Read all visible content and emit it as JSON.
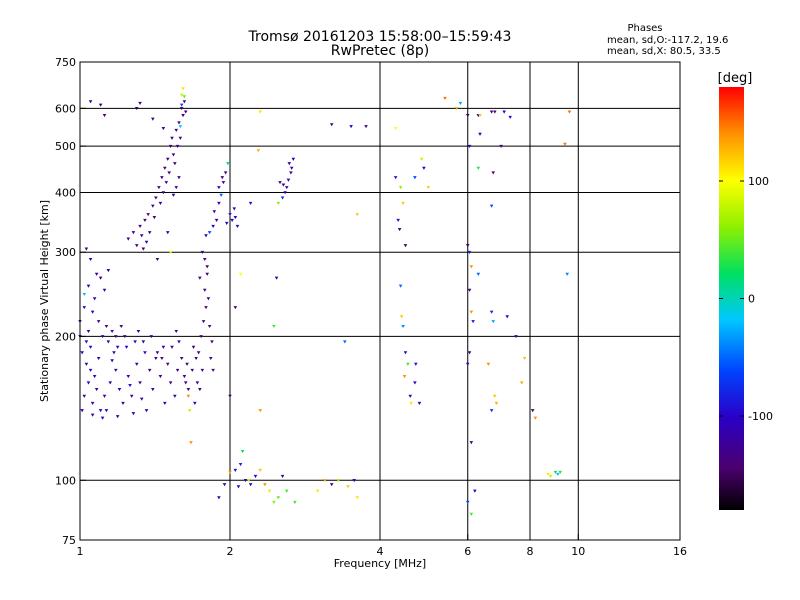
{
  "chart_data": {
    "type": "scatter",
    "title": "Tromsø 20161203 15:58:00–15:59:43",
    "subtitle": "RwPretec (8p)",
    "xlabel": "Frequency [MHz]",
    "ylabel": "Stationary phase Virtual Height [km]",
    "x_scale": "log",
    "y_scale": "log",
    "xlim": [
      1,
      16
    ],
    "ylim": [
      75,
      750
    ],
    "x_ticks": [
      {
        "value": 1,
        "label": "1"
      },
      {
        "value": 2,
        "label": "2"
      },
      {
        "value": 4,
        "label": "4"
      },
      {
        "value": 6,
        "label": "6"
      },
      {
        "value": 8,
        "label": "8"
      },
      {
        "value": 10,
        "label": "10"
      },
      {
        "value": 16,
        "label": "16"
      }
    ],
    "x_grid": [
      2,
      4,
      6,
      8,
      10
    ],
    "y_ticks": [
      {
        "value": 75,
        "label": "75"
      },
      {
        "value": 100,
        "label": "100"
      },
      {
        "value": 200,
        "label": "200"
      },
      {
        "value": 300,
        "label": "300"
      },
      {
        "value": 400,
        "label": "400"
      },
      {
        "value": 500,
        "label": "500"
      },
      {
        "value": 600,
        "label": "600"
      },
      {
        "value": 750,
        "label": "750"
      }
    ],
    "y_grid": [
      100,
      200,
      300,
      400,
      500,
      600
    ],
    "legend": {
      "title": "Phases",
      "lines": [
        "mean, sd,O:-117.2, 19.6",
        "mean, sd,X:  80.5, 33.5"
      ]
    },
    "colorbar": {
      "label": "[deg]",
      "range": [
        -180,
        180
      ],
      "ticks": [
        {
          "value": 100,
          "label": "100"
        },
        {
          "value": 0,
          "label": "0"
        },
        {
          "value": -100,
          "label": "-100"
        }
      ]
    },
    "point_columns": [
      "frequency_mhz",
      "height_km",
      "phase_deg"
    ],
    "points": [
      [
        1.02,
        150,
        -118
      ],
      [
        1.04,
        160,
        -112
      ],
      [
        1.06,
        145,
        -125
      ],
      [
        1.05,
        170,
        -105
      ],
      [
        1.08,
        155,
        -130
      ],
      [
        1.1,
        140,
        -100
      ],
      [
        1.03,
        175,
        -120
      ],
      [
        1.07,
        165,
        -95
      ],
      [
        1.12,
        150,
        -135
      ],
      [
        1.09,
        180,
        -110
      ],
      [
        1.15,
        160,
        -122
      ],
      [
        1.13,
        140,
        -108
      ],
      [
        1.18,
        170,
        -128
      ],
      [
        1.2,
        155,
        -100
      ],
      [
        1.17,
        185,
        -115
      ],
      [
        1.22,
        145,
        -132
      ],
      [
        1.25,
        165,
        -118
      ],
      [
        1.24,
        190,
        -98
      ],
      [
        1.27,
        150,
        -140
      ],
      [
        1.3,
        175,
        -110
      ],
      [
        1.32,
        160,
        -126
      ],
      [
        1.35,
        185,
        -104
      ],
      [
        1.33,
        148,
        -120
      ],
      [
        1.38,
        170,
        -136
      ],
      [
        1.4,
        155,
        -112
      ],
      [
        1.42,
        180,
        -124
      ],
      [
        1.45,
        165,
        -138
      ],
      [
        1.47,
        190,
        -116
      ],
      [
        1.5,
        175,
        -130
      ],
      [
        1.52,
        160,
        -142
      ],
      [
        1.55,
        150,
        -125
      ],
      [
        1.57,
        170,
        -135
      ],
      [
        1.6,
        180,
        -140
      ],
      [
        1.62,
        165,
        -128
      ],
      [
        1.65,
        155,
        -145
      ],
      [
        1.58,
        195,
        -120
      ],
      [
        1.48,
        145,
        -110
      ],
      [
        1.36,
        140,
        -118
      ],
      [
        1.28,
        138,
        -122
      ],
      [
        1.19,
        136,
        -115
      ],
      [
        1.11,
        135,
        -108
      ],
      [
        1.06,
        137,
        -126
      ],
      [
        1.01,
        140,
        -112
      ],
      [
        1.05,
        190,
        -102
      ],
      [
        1.14,
        195,
        -118
      ],
      [
        1.23,
        200,
        -125
      ],
      [
        1.31,
        205,
        -110
      ],
      [
        1.29,
        195,
        -98
      ],
      [
        1.16,
        178,
        -105
      ],
      [
        1.26,
        158,
        -92
      ],
      [
        1.0,
        215,
        -130
      ],
      [
        1.02,
        230,
        -115
      ],
      [
        1.06,
        225,
        -100
      ],
      [
        1.04,
        255,
        -110
      ],
      [
        1.07,
        240,
        -125
      ],
      [
        1.08,
        270,
        -120
      ],
      [
        1.05,
        290,
        -108
      ],
      [
        1.03,
        305,
        -135
      ],
      [
        1.02,
        245,
        -20
      ],
      [
        1.12,
        250,
        -116
      ],
      [
        1.1,
        265,
        -128
      ],
      [
        1.14,
        275,
        -104
      ],
      [
        1.25,
        320,
        -135
      ],
      [
        1.28,
        330,
        -128
      ],
      [
        1.3,
        310,
        -140
      ],
      [
        1.32,
        340,
        -132
      ],
      [
        1.35,
        350,
        -138
      ],
      [
        1.33,
        325,
        -125
      ],
      [
        1.37,
        360,
        -142
      ],
      [
        1.38,
        330,
        -130
      ],
      [
        1.4,
        375,
        -136
      ],
      [
        1.42,
        390,
        -128
      ],
      [
        1.41,
        355,
        -140
      ],
      [
        1.44,
        410,
        -134
      ],
      [
        1.45,
        380,
        -126
      ],
      [
        1.46,
        430,
        -138
      ],
      [
        1.47,
        400,
        -130
      ],
      [
        1.48,
        450,
        -142
      ],
      [
        1.49,
        420,
        -124
      ],
      [
        1.5,
        470,
        -136
      ],
      [
        1.51,
        440,
        -128
      ],
      [
        1.52,
        500,
        -140
      ],
      [
        1.54,
        480,
        -132
      ],
      [
        1.53,
        520,
        -126
      ],
      [
        1.55,
        460,
        -138
      ],
      [
        1.56,
        540,
        -134
      ],
      [
        1.57,
        500,
        -128
      ],
      [
        1.58,
        560,
        -142
      ],
      [
        1.59,
        520,
        -130
      ],
      [
        1.6,
        600,
        -136
      ],
      [
        1.61,
        580,
        -128
      ],
      [
        1.62,
        620,
        -132
      ],
      [
        1.6,
        640,
        80
      ],
      [
        1.61,
        660,
        110
      ],
      [
        1.62,
        635,
        50
      ],
      [
        1.6,
        610,
        -60
      ],
      [
        1.63,
        590,
        -140
      ],
      [
        1.59,
        550,
        -20
      ],
      [
        1.58,
        430,
        -126
      ],
      [
        1.56,
        410,
        -132
      ],
      [
        1.54,
        395,
        -120
      ],
      [
        1.3,
        600,
        -150
      ],
      [
        1.32,
        615,
        -140
      ],
      [
        1.4,
        570,
        -130
      ],
      [
        1.47,
        545,
        -125
      ],
      [
        1.5,
        330,
        -130
      ],
      [
        1.52,
        300,
        100
      ],
      [
        1.36,
        315,
        -110
      ],
      [
        1.34,
        305,
        -150
      ],
      [
        1.43,
        290,
        -130
      ],
      [
        1.65,
        150,
        140
      ],
      [
        1.66,
        140,
        80
      ],
      [
        1.67,
        120,
        140
      ],
      [
        1.7,
        145,
        -120
      ],
      [
        1.72,
        160,
        -130
      ],
      [
        1.74,
        155,
        -140
      ],
      [
        1.76,
        170,
        -125
      ],
      [
        1.73,
        185,
        -135
      ],
      [
        1.75,
        200,
        -140
      ],
      [
        1.77,
        215,
        -130
      ],
      [
        1.79,
        230,
        -138
      ],
      [
        1.78,
        250,
        -128
      ],
      [
        1.8,
        270,
        -134
      ],
      [
        1.81,
        240,
        -122
      ],
      [
        1.82,
        210,
        -130
      ],
      [
        1.84,
        195,
        -140
      ],
      [
        1.83,
        180,
        -128
      ],
      [
        1.85,
        170,
        -135
      ],
      [
        1.78,
        290,
        -132
      ],
      [
        1.76,
        300,
        -126
      ],
      [
        1.8,
        280,
        -142
      ],
      [
        1.74,
        265,
        -130
      ],
      [
        1.79,
        325,
        -120
      ],
      [
        1.82,
        330,
        -60
      ],
      [
        1.85,
        340,
        -110
      ],
      [
        1.88,
        350,
        -120
      ],
      [
        1.86,
        365,
        -130
      ],
      [
        1.9,
        380,
        -100
      ],
      [
        1.92,
        395,
        -50
      ],
      [
        1.9,
        410,
        -115
      ],
      [
        1.94,
        420,
        -105
      ],
      [
        1.96,
        440,
        -125
      ],
      [
        1.98,
        460,
        10
      ],
      [
        1.93,
        430,
        -140
      ],
      [
        1.97,
        345,
        -115
      ],
      [
        2.0,
        360,
        -90
      ],
      [
        2.02,
        350,
        -110
      ],
      [
        2.05,
        355,
        -100
      ],
      [
        2.07,
        340,
        -120
      ],
      [
        2.04,
        370,
        -105
      ],
      [
        2.3,
        590,
        110
      ],
      [
        2.28,
        490,
        130
      ],
      [
        2.2,
        380,
        -90
      ],
      [
        2.5,
        380,
        60
      ],
      [
        2.55,
        390,
        -80
      ],
      [
        2.58,
        400,
        -100
      ],
      [
        2.6,
        410,
        -120
      ],
      [
        2.62,
        425,
        -110
      ],
      [
        2.65,
        440,
        -130
      ],
      [
        2.63,
        460,
        -115
      ],
      [
        2.68,
        470,
        -125
      ],
      [
        2.66,
        450,
        -100
      ],
      [
        2.56,
        415,
        -135
      ],
      [
        2.52,
        420,
        -130
      ],
      [
        2.48,
        265,
        -130
      ],
      [
        2.45,
        210,
        40
      ],
      [
        2.3,
        140,
        140
      ],
      [
        2.1,
        270,
        100
      ],
      [
        2.05,
        230,
        -150
      ],
      [
        2.0,
        150,
        -140
      ],
      [
        2.05,
        105,
        -90
      ],
      [
        2.1,
        108,
        -80
      ],
      [
        2.12,
        115,
        20
      ],
      [
        2.15,
        100,
        -100
      ],
      [
        2.2,
        98,
        -110
      ],
      [
        2.3,
        105,
        120
      ],
      [
        2.35,
        98,
        140
      ],
      [
        2.4,
        95,
        110
      ],
      [
        2.45,
        90,
        60
      ],
      [
        2.5,
        92,
        50
      ],
      [
        2.55,
        102,
        -130
      ],
      [
        2.6,
        95,
        40
      ],
      [
        2.7,
        90,
        40
      ],
      [
        2.25,
        102,
        -110
      ],
      [
        2.18,
        100,
        80
      ],
      [
        2.08,
        97,
        -110
      ],
      [
        1.95,
        98,
        -120
      ],
      [
        2.0,
        104,
        140
      ],
      [
        1.9,
        92,
        -110
      ],
      [
        3.0,
        95,
        110
      ],
      [
        3.1,
        100,
        130
      ],
      [
        3.2,
        98,
        -130
      ],
      [
        3.3,
        100,
        70
      ],
      [
        3.45,
        97,
        120
      ],
      [
        3.55,
        100,
        -100
      ],
      [
        3.6,
        92,
        110
      ],
      [
        3.2,
        555,
        -130
      ],
      [
        3.5,
        550,
        -110
      ],
      [
        3.4,
        195,
        -50
      ],
      [
        3.6,
        360,
        120
      ],
      [
        3.75,
        550,
        -130
      ],
      [
        4.3,
        545,
        100
      ],
      [
        4.3,
        430,
        -90
      ],
      [
        4.4,
        410,
        60
      ],
      [
        4.45,
        380,
        120
      ],
      [
        4.35,
        350,
        -90
      ],
      [
        4.5,
        310,
        -150
      ],
      [
        4.38,
        335,
        -120
      ],
      [
        4.4,
        255,
        -50
      ],
      [
        4.42,
        220,
        120
      ],
      [
        4.45,
        210,
        -40
      ],
      [
        4.5,
        185,
        -100
      ],
      [
        4.55,
        175,
        40
      ],
      [
        4.48,
        165,
        140
      ],
      [
        4.6,
        150,
        -120
      ],
      [
        4.62,
        145,
        110
      ],
      [
        4.7,
        160,
        -100
      ],
      [
        4.72,
        175,
        -90
      ],
      [
        4.8,
        145,
        -100
      ],
      [
        4.85,
        470,
        80
      ],
      [
        4.9,
        450,
        -100
      ],
      [
        4.7,
        430,
        -60
      ],
      [
        5.0,
        410,
        120
      ],
      [
        5.4,
        630,
        150
      ],
      [
        5.7,
        600,
        130
      ],
      [
        5.8,
        615,
        -30
      ],
      [
        6.0,
        580,
        -150
      ],
      [
        6.05,
        500,
        -120
      ],
      [
        6.0,
        310,
        -150
      ],
      [
        6.05,
        300,
        -80
      ],
      [
        6.1,
        280,
        140
      ],
      [
        6.05,
        250,
        -140
      ],
      [
        6.1,
        225,
        140
      ],
      [
        6.15,
        215,
        -90
      ],
      [
        6.05,
        185,
        -130
      ],
      [
        6.0,
        175,
        -120
      ],
      [
        6.1,
        120,
        -130
      ],
      [
        6.2,
        95,
        -100
      ],
      [
        6.0,
        90,
        -60
      ],
      [
        6.1,
        85,
        40
      ],
      [
        6.3,
        580,
        -110
      ],
      [
        6.35,
        580,
        120
      ],
      [
        6.35,
        530,
        -100
      ],
      [
        6.3,
        450,
        30
      ],
      [
        6.3,
        270,
        -50
      ],
      [
        6.7,
        590,
        -130
      ],
      [
        6.8,
        590,
        -140
      ],
      [
        6.75,
        440,
        -140
      ],
      [
        6.7,
        375,
        -60
      ],
      [
        6.7,
        225,
        -80
      ],
      [
        6.75,
        215,
        -30
      ],
      [
        6.6,
        175,
        140
      ],
      [
        6.8,
        150,
        120
      ],
      [
        6.85,
        145,
        130
      ],
      [
        6.7,
        140,
        -70
      ],
      [
        7.1,
        590,
        -110
      ],
      [
        7.3,
        575,
        -90
      ],
      [
        7.0,
        500,
        -140
      ],
      [
        7.2,
        220,
        -100
      ],
      [
        7.5,
        200,
        -120
      ],
      [
        7.8,
        180,
        120
      ],
      [
        7.7,
        160,
        130
      ],
      [
        8.1,
        140,
        -150
      ],
      [
        8.2,
        135,
        140
      ],
      [
        8.7,
        103,
        110
      ],
      [
        8.8,
        102,
        80
      ],
      [
        9.0,
        104,
        20
      ],
      [
        9.1,
        103,
        -20
      ],
      [
        9.2,
        104,
        30
      ],
      [
        9.4,
        505,
        150
      ],
      [
        9.5,
        270,
        -40
      ],
      [
        9.6,
        590,
        150
      ],
      [
        1.05,
        620,
        -130
      ],
      [
        1.1,
        610,
        -150
      ],
      [
        1.12,
        580,
        -140
      ],
      [
        1.0,
        200,
        -100
      ],
      [
        1.01,
        185,
        -105
      ],
      [
        1.03,
        195,
        -115
      ],
      [
        1.04,
        205,
        -125
      ],
      [
        1.09,
        215,
        -130
      ],
      [
        1.11,
        200,
        -110
      ],
      [
        1.13,
        210,
        -120
      ],
      [
        1.16,
        205,
        -95
      ],
      [
        1.18,
        200,
        -130
      ],
      [
        1.21,
        210,
        -140
      ],
      [
        1.19,
        190,
        -118
      ],
      [
        1.34,
        195,
        -122
      ],
      [
        1.39,
        200,
        -130
      ],
      [
        1.43,
        185,
        -125
      ],
      [
        1.46,
        180,
        -135
      ],
      [
        1.53,
        190,
        -140
      ],
      [
        1.56,
        205,
        -120
      ],
      [
        1.63,
        160,
        -130
      ],
      [
        1.64,
        175,
        -140
      ],
      [
        1.68,
        170,
        -135
      ],
      [
        1.71,
        180,
        -128
      ],
      [
        1.69,
        190,
        -142
      ]
    ]
  }
}
